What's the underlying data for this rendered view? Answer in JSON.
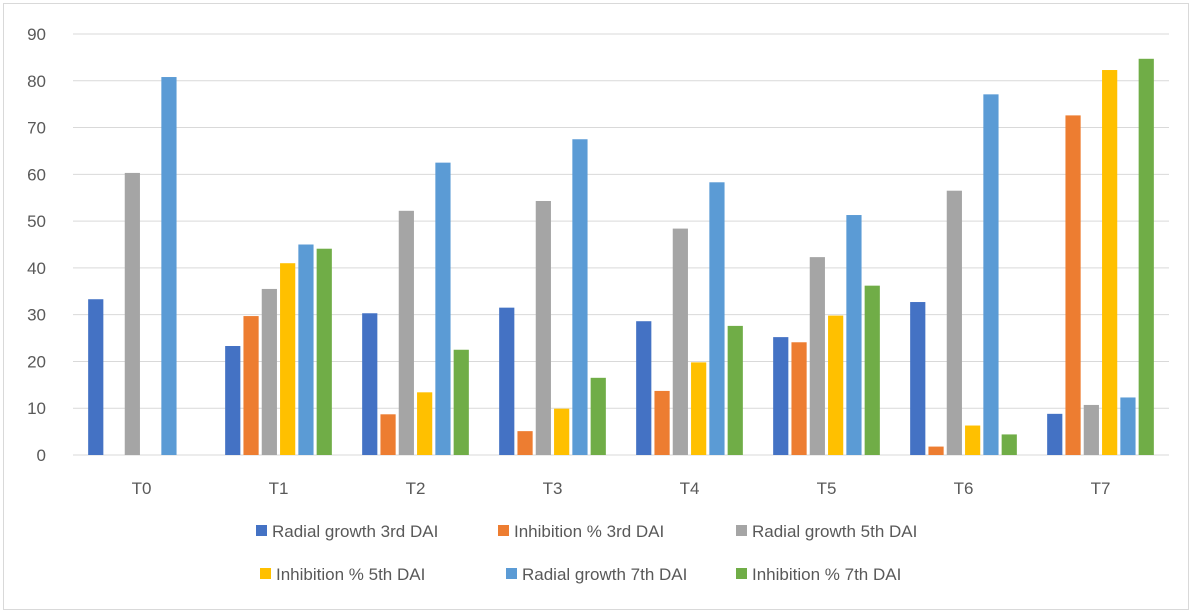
{
  "chart_data": {
    "type": "bar",
    "title": "",
    "xlabel": "",
    "ylabel": "",
    "ylim": [
      0,
      90
    ],
    "yticks": [
      0,
      10,
      20,
      30,
      40,
      50,
      60,
      70,
      80,
      90
    ],
    "grid": "horizontal",
    "legend_position": "bottom",
    "categories": [
      "T0",
      "T1",
      "T2",
      "T3",
      "T4",
      "T5",
      "T6",
      "T7"
    ],
    "series": [
      {
        "name": "Radial growth 3rd DAI",
        "color": "#4472c4",
        "values": [
          33.3,
          23.3,
          30.3,
          31.5,
          28.6,
          25.2,
          32.7,
          8.8
        ]
      },
      {
        "name": "Inhibition % 3rd DAI",
        "color": "#ed7d31",
        "values": [
          0,
          29.7,
          8.7,
          5.1,
          13.7,
          24.1,
          1.8,
          72.6
        ]
      },
      {
        "name": "Radial growth 5th DAI",
        "color": "#a5a5a5",
        "values": [
          60.3,
          35.5,
          52.2,
          54.3,
          48.4,
          42.3,
          56.5,
          10.7
        ]
      },
      {
        "name": "Inhibition % 5th DAI",
        "color": "#ffc000",
        "values": [
          0,
          41.0,
          13.4,
          9.9,
          19.8,
          29.8,
          6.3,
          82.3
        ]
      },
      {
        "name": "Radial growth 7th DAI",
        "color": "#5b9bd5",
        "values": [
          80.8,
          45.0,
          62.5,
          67.5,
          58.3,
          51.3,
          77.1,
          12.3
        ]
      },
      {
        "name": "Inhibition % 7th DAI",
        "color": "#70ad47",
        "values": [
          0,
          44.1,
          22.5,
          16.5,
          27.6,
          36.2,
          4.4,
          84.7
        ]
      }
    ]
  }
}
